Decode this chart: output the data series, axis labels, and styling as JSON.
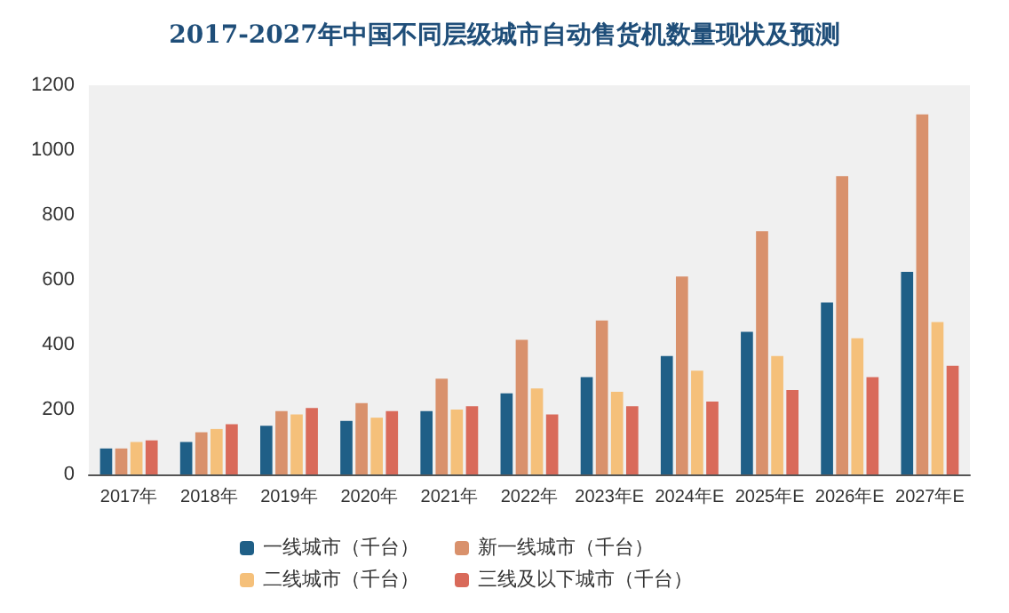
{
  "chart_data": {
    "type": "bar",
    "title": "2017-2027年中国不同层级城市自动售货机数量现状及预测",
    "categories": [
      "2017年",
      "2018年",
      "2019年",
      "2020年",
      "2021年",
      "2022年",
      "2023年E",
      "2024年E",
      "2025年E",
      "2026年E",
      "2027年E"
    ],
    "series": [
      {
        "name": "一线城市（千台）",
        "color": "#1f5f87",
        "values": [
          80,
          100,
          150,
          165,
          195,
          250,
          300,
          365,
          440,
          530,
          625
        ]
      },
      {
        "name": "新一线城市（千台）",
        "color": "#d9916c",
        "values": [
          80,
          130,
          195,
          220,
          295,
          415,
          475,
          610,
          750,
          920,
          1110
        ]
      },
      {
        "name": "二线城市（千台）",
        "color": "#f5c07a",
        "values": [
          100,
          140,
          185,
          175,
          200,
          265,
          255,
          320,
          365,
          420,
          470
        ]
      },
      {
        "name": "三线及以下城市（千台）",
        "color": "#d96a5a",
        "values": [
          105,
          155,
          205,
          195,
          210,
          185,
          210,
          225,
          260,
          300,
          335
        ]
      }
    ],
    "ylim": [
      0,
      1200
    ],
    "yticks": [
      0,
      200,
      400,
      600,
      800,
      1000,
      1200
    ],
    "grid": false,
    "legend": "bottom"
  }
}
